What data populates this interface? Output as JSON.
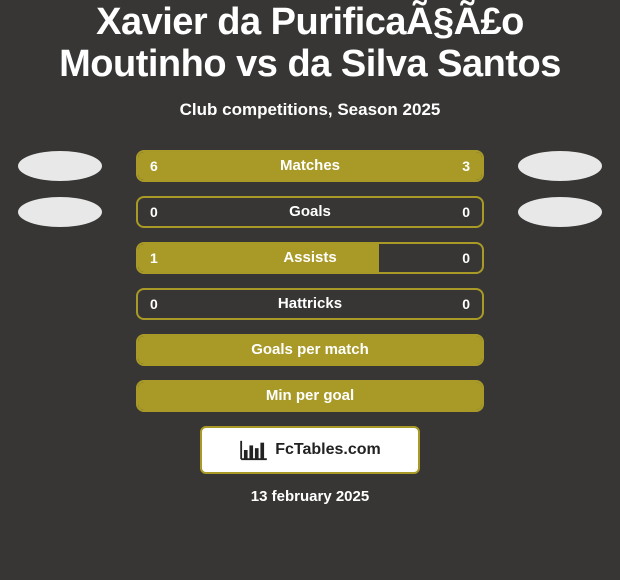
{
  "page": {
    "background_color": "#373634",
    "text_color": "#ffffff",
    "accent_color": "#a99a27",
    "avatar_color": "#e8e8e8",
    "logo_bg": "#ffffff",
    "logo_border": "#a99a27",
    "logo_text_color": "#222222",
    "title": "Xavier da PurificaÃ§Ã£o Moutinho vs da Silva Santos",
    "title_fontsize": 38,
    "subtitle": "Club competitions, Season 2025",
    "subtitle_fontsize": 17,
    "row_label_fontsize": 15,
    "row_value_fontsize": 14,
    "logo_text": "FcTables.com",
    "logo_fontsize": 16,
    "date": "13 february 2025",
    "date_fontsize": 15
  },
  "rows": [
    {
      "label": "Matches",
      "left": "6",
      "right": "3",
      "left_pct": 66.7,
      "right_pct": 33.3,
      "show_avatars": true,
      "show_values": true
    },
    {
      "label": "Goals",
      "left": "0",
      "right": "0",
      "left_pct": 0,
      "right_pct": 0,
      "show_avatars": true,
      "show_values": true
    },
    {
      "label": "Assists",
      "left": "1",
      "right": "0",
      "left_pct": 70,
      "right_pct": 0,
      "show_avatars": false,
      "show_values": true
    },
    {
      "label": "Hattricks",
      "left": "0",
      "right": "0",
      "left_pct": 0,
      "right_pct": 0,
      "show_avatars": false,
      "show_values": true
    },
    {
      "label": "Goals per match",
      "left": "",
      "right": "",
      "left_pct": 100,
      "right_pct": 0,
      "show_avatars": false,
      "show_values": false
    },
    {
      "label": "Min per goal",
      "left": "",
      "right": "",
      "left_pct": 100,
      "right_pct": 0,
      "show_avatars": false,
      "show_values": false
    }
  ]
}
